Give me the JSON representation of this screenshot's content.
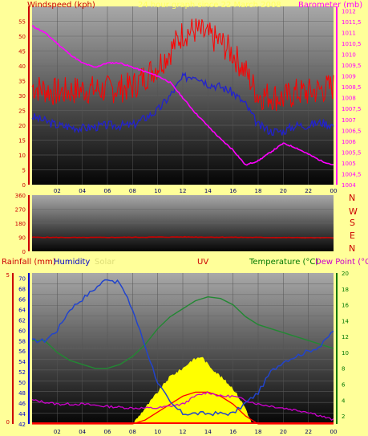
{
  "header": {
    "left_label": "Windspeed (kph)",
    "center_label": "24 hour graph since 22 March 2008",
    "right_label": "Barometer (mb)"
  },
  "colors": {
    "background": "#ffff99",
    "windspeed": "#ff0000",
    "wind_avg": "#2222cc",
    "barometer": "#ff00ff",
    "wind_dir": "#cc0000",
    "humidity": "#2244cc",
    "temperature": "#228833",
    "dewpoint": "#cc00cc",
    "uv": "#ff0000",
    "solar": "#ffff00",
    "rain": "#ff0000"
  },
  "mid_header": {
    "directions": [
      "N",
      "W",
      "S",
      "E",
      "N"
    ]
  },
  "bottom_header": {
    "rainfall": "Rainfall (mm)",
    "humidity": "Humidity",
    "solar": "Solar",
    "uv": "UV",
    "temperature": "Temperature (°C)",
    "dewpoint": "Dew Point (°C)"
  },
  "chart_data": [
    {
      "type": "line",
      "name": "wind-barometer",
      "x_ticks": [
        "02",
        "04",
        "06",
        "08",
        "10",
        "12",
        "14",
        "16",
        "18",
        "20",
        "22",
        "00"
      ],
      "y_left_ticks": [
        "0",
        "5",
        "10",
        "15",
        "20",
        "25",
        "30",
        "35",
        "40",
        "45",
        "50",
        "55"
      ],
      "y_left_range": [
        0,
        60
      ],
      "y_right_ticks": [
        "1004",
        "1004,5",
        "1005",
        "1005,5",
        "1006",
        "1006,5",
        "1007",
        "1007,5",
        "1008",
        "1008,5",
        "1009",
        "1009,5",
        "1010",
        "1010,5",
        "1011",
        "1011,5",
        "1012"
      ],
      "y_right_range": [
        1004,
        1012.2
      ],
      "x_range": [
        0,
        24
      ],
      "wind_gust": {
        "x": [
          0,
          2,
          4,
          6,
          8,
          10,
          11,
          12,
          13,
          14,
          15,
          16,
          17,
          18,
          19,
          20,
          21,
          22,
          23,
          24
        ],
        "y": [
          33,
          31,
          32,
          32,
          33,
          40,
          45,
          51,
          52,
          50,
          48,
          44,
          38,
          30,
          30,
          29,
          31,
          31,
          32,
          33
        ]
      },
      "wind_avg": {
        "x": [
          0,
          2,
          4,
          6,
          8,
          10,
          11,
          12,
          13,
          14,
          15,
          16,
          17,
          18,
          19,
          20,
          21,
          22,
          23,
          24
        ],
        "y": [
          23,
          20,
          19,
          20,
          20,
          25,
          30,
          36,
          37,
          34,
          33,
          31,
          27,
          20,
          18,
          18,
          20,
          20,
          21,
          20
        ]
      },
      "barometer": {
        "x": [
          0,
          1,
          2,
          3,
          4,
          5,
          6,
          7,
          8,
          9,
          10,
          11,
          12,
          13,
          14,
          15,
          16,
          17,
          18,
          19,
          20,
          21,
          22,
          23,
          24
        ],
        "y": [
          1011.3,
          1011.0,
          1010.5,
          1010.0,
          1009.6,
          1009.4,
          1009.6,
          1009.6,
          1009.4,
          1009.2,
          1009.0,
          1008.7,
          1008.0,
          1007.3,
          1006.7,
          1006.1,
          1005.6,
          1004.9,
          1005.1,
          1005.5,
          1005.9,
          1005.7,
          1005.4,
          1005.1,
          1004.9
        ]
      }
    },
    {
      "type": "line",
      "name": "wind-direction",
      "x_range": [
        0,
        24
      ],
      "y_ticks": [
        "0",
        "90",
        "180",
        "270",
        "360"
      ],
      "y_range": [
        0,
        360
      ],
      "direction": {
        "x": [
          0,
          4,
          8,
          12,
          16,
          20,
          24
        ],
        "y": [
          90,
          88,
          90,
          92,
          90,
          88,
          86
        ]
      }
    },
    {
      "type": "line",
      "name": "humidity-temp",
      "x_ticks": [
        "02",
        "04",
        "06",
        "08",
        "10",
        "12",
        "14",
        "16",
        "18",
        "20",
        "22",
        "00"
      ],
      "x_range": [
        0,
        24
      ],
      "y_left_ticks": [
        "42",
        "44",
        "46",
        "48",
        "50",
        "52",
        "54",
        "56",
        "58",
        "60",
        "62",
        "64",
        "66",
        "68",
        "70"
      ],
      "y_left_range": [
        42,
        71
      ],
      "y_right_ticks": [
        "2",
        "4",
        "6",
        "8",
        "10",
        "12",
        "14",
        "16",
        "18",
        "20"
      ],
      "y_right_range": [
        1,
        20
      ],
      "rain_ticks": [
        "0",
        "5"
      ],
      "humidity": {
        "x": [
          0,
          1,
          2,
          3,
          4,
          5,
          6,
          7,
          8,
          9,
          10,
          11,
          12,
          13,
          14,
          15,
          16,
          17,
          18,
          19,
          20,
          21,
          22,
          23,
          24
        ],
        "y": [
          58,
          58,
          60,
          64,
          66,
          68,
          70,
          69,
          64,
          57,
          50,
          46,
          44,
          44,
          44,
          44,
          44,
          46,
          48,
          52,
          54,
          55,
          56,
          57,
          60
        ]
      },
      "temperature": {
        "x": [
          0,
          1,
          2,
          3,
          4,
          5,
          6,
          7,
          8,
          9,
          10,
          11,
          12,
          13,
          14,
          15,
          16,
          17,
          18,
          19,
          20,
          21,
          22,
          23,
          24
        ],
        "y": [
          11.5,
          11.5,
          10,
          9,
          8.5,
          8,
          8,
          8.5,
          9.5,
          11,
          13,
          14.5,
          15.5,
          16.5,
          17,
          16.8,
          16,
          14.5,
          13.5,
          13,
          12.5,
          12,
          11.5,
          11,
          10.5
        ]
      },
      "dewpoint": {
        "x": [
          0,
          2,
          4,
          6,
          8,
          10,
          12,
          13,
          14,
          15,
          16,
          17,
          18,
          20,
          22,
          23,
          24
        ],
        "y": [
          4,
          3.5,
          3.5,
          3.2,
          3,
          3,
          3.5,
          4.5,
          5,
          4.5,
          4.5,
          4,
          3.5,
          3,
          2.5,
          2,
          1.5
        ]
      },
      "uv": {
        "x": [
          0,
          8,
          9,
          10,
          11,
          12,
          13,
          14,
          15,
          16,
          17,
          18,
          24
        ],
        "y": [
          1,
          1,
          1.5,
          2.5,
          3.5,
          4.5,
          5,
          5,
          4.5,
          3.5,
          2,
          1,
          1
        ]
      },
      "solar": {
        "x": [
          8,
          9,
          10,
          11,
          12,
          12.7,
          13.5,
          14,
          15,
          16,
          17,
          17.5
        ],
        "y": [
          1,
          3,
          5,
          7,
          8,
          9,
          9.5,
          8.5,
          7,
          5.5,
          3,
          1
        ]
      }
    }
  ]
}
